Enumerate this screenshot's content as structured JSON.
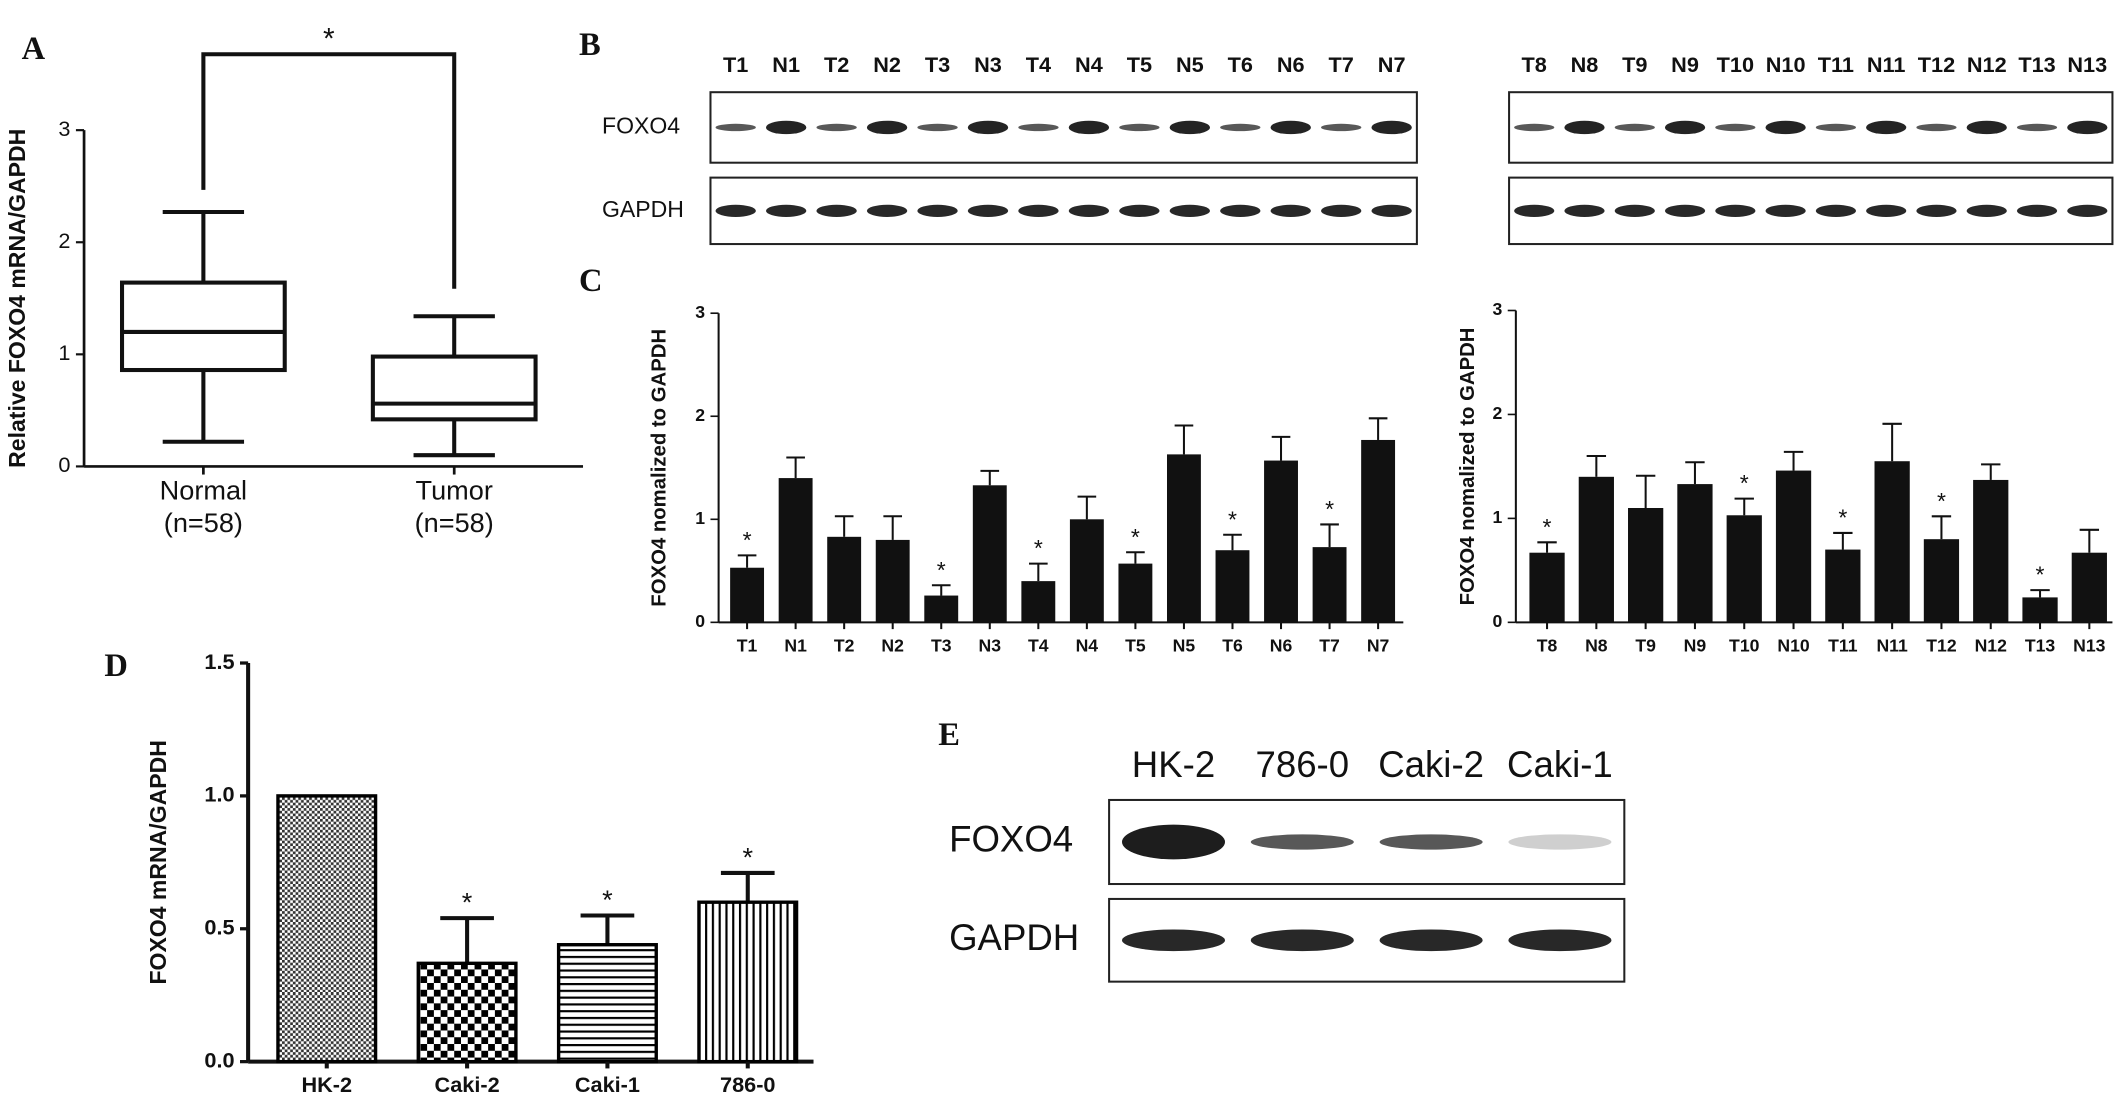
{
  "panels": [
    "A",
    "B",
    "C",
    "D",
    "E"
  ],
  "chart_data": [
    {
      "type": "box",
      "ylabel": "Relative FOXO4 mRNA/GAPDH",
      "categories": [
        "Normal",
        "Tumor"
      ],
      "category_sublabels": [
        "(n=58)",
        "(n=58)"
      ],
      "boxes": [
        {
          "min": 0.22,
          "q1": 0.86,
          "median": 1.2,
          "q3": 1.64,
          "max": 2.27
        },
        {
          "min": 0.1,
          "q1": 0.42,
          "median": 0.56,
          "q3": 0.98,
          "max": 1.34
        }
      ],
      "annotation": "*",
      "ylim": [
        0,
        3
      ],
      "yticks": [
        0,
        1,
        2,
        3
      ],
      "color": "#111111"
    },
    {
      "type": "bar",
      "ylabel": "FOXO4 nomalized to GAPDH",
      "categories": [
        "T1",
        "N1",
        "T2",
        "N2",
        "T3",
        "N3",
        "T4",
        "N4",
        "T5",
        "N5",
        "T6",
        "N6",
        "T7",
        "N7"
      ],
      "values": [
        0.53,
        1.4,
        0.83,
        0.8,
        0.26,
        1.33,
        0.4,
        1.0,
        0.57,
        1.63,
        0.7,
        1.57,
        0.73,
        1.77
      ],
      "errors": [
        0.12,
        0.2,
        0.2,
        0.23,
        0.1,
        0.14,
        0.17,
        0.22,
        0.11,
        0.28,
        0.15,
        0.23,
        0.22,
        0.21
      ],
      "annotations": [
        "*",
        null,
        null,
        null,
        "*",
        null,
        "*",
        null,
        "*",
        null,
        "*",
        null,
        "*",
        null
      ],
      "ylim": [
        0,
        3
      ],
      "yticks": [
        0,
        1,
        2,
        3
      ],
      "color": "#111111"
    },
    {
      "type": "bar",
      "ylabel": "FOXO4 nomalized to GAPDH",
      "categories": [
        "T8",
        "N8",
        "T9",
        "N9",
        "T10",
        "N10",
        "T11",
        "N11",
        "T12",
        "N12",
        "T13",
        "N13"
      ],
      "values": [
        0.67,
        1.4,
        1.1,
        1.33,
        1.03,
        1.46,
        0.7,
        1.55,
        0.8,
        1.37,
        0.24,
        0.67
      ],
      "errors": [
        0.1,
        0.2,
        0.31,
        0.21,
        0.16,
        0.18,
        0.16,
        0.36,
        0.22,
        0.15,
        0.07,
        0.22
      ],
      "annotations": [
        "*",
        null,
        null,
        null,
        "*",
        null,
        "*",
        null,
        "*",
        null,
        "*",
        null
      ],
      "ylim": [
        0,
        3
      ],
      "yticks": [
        0,
        1,
        2,
        3
      ],
      "color": "#111111"
    },
    {
      "type": "bar",
      "ylabel": "FOXO4 mRNA/GAPDH",
      "categories": [
        "HK-2",
        "Caki-2",
        "Caki-1",
        "786-0"
      ],
      "values": [
        1.0,
        0.37,
        0.44,
        0.6
      ],
      "errors": [
        0,
        0.17,
        0.11,
        0.11
      ],
      "annotations": [
        null,
        "*",
        "*",
        "*"
      ],
      "patterns": [
        "crosshatch",
        "checker",
        "horizontal",
        "vertical"
      ],
      "ylim": [
        0,
        1.5
      ],
      "yticks": [
        {
          "value": 0,
          "label": "0.0"
        },
        0.5,
        {
          "value": 1,
          "label": "1.0"
        },
        1.5
      ],
      "color": "#000000"
    }
  ],
  "blots": [
    {
      "lanes": [
        "T1",
        "N1",
        "T2",
        "N2",
        "T3",
        "N3",
        "T4",
        "N4",
        "T5",
        "N5",
        "T6",
        "N6",
        "T7",
        "N7"
      ],
      "rows": [
        "FOXO4",
        "GAPDH"
      ]
    },
    {
      "lanes": [
        "T8",
        "N8",
        "T9",
        "N9",
        "T10",
        "N10",
        "T11",
        "N11",
        "T12",
        "N12",
        "T13",
        "N13"
      ]
    },
    {
      "lanes": [
        "HK-2",
        "786-0",
        "Caki-2",
        "Caki-1"
      ],
      "rows": [
        "FOXO4",
        "GAPDH"
      ]
    }
  ]
}
